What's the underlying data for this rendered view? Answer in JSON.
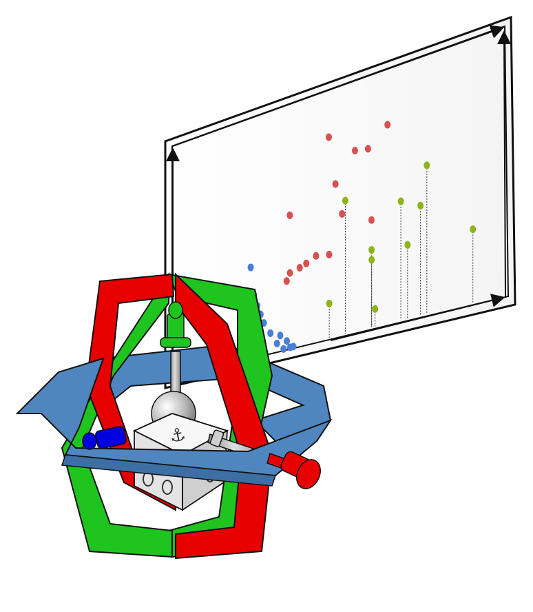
{
  "colors": {
    "red": "#e60000",
    "green": "#1fc41f",
    "blue": "#4f86c0",
    "blue_marker": "#0000e0",
    "red_points": "#d85050",
    "blue_points": "#4a7fd6",
    "green_points": "#8db41a",
    "cube": "#f2f2f2",
    "rod": "#b0b0b0"
  },
  "icons": [
    "anchor-icon",
    "axis-arrow-icon"
  ],
  "cube_symbol": "⚓",
  "scatter": {
    "red": [
      [
        0.47,
        0.82
      ],
      [
        0.65,
        0.79
      ],
      [
        0.55,
        0.73
      ],
      [
        0.59,
        0.72
      ],
      [
        0.49,
        0.62
      ],
      [
        0.35,
        0.55
      ],
      [
        0.51,
        0.49
      ],
      [
        0.6,
        0.43
      ],
      [
        0.43,
        0.35
      ],
      [
        0.47,
        0.34
      ],
      [
        0.35,
        0.31
      ],
      [
        0.38,
        0.32
      ],
      [
        0.4,
        0.33
      ],
      [
        0.34,
        0.28
      ]
    ],
    "blue": [
      [
        0.23,
        0.38
      ],
      [
        0.21,
        0.27
      ],
      [
        0.24,
        0.26
      ],
      [
        0.25,
        0.21
      ],
      [
        0.26,
        0.17
      ],
      [
        0.27,
        0.13
      ],
      [
        0.29,
        0.08
      ],
      [
        0.31,
        0.03
      ],
      [
        0.32,
        0.06
      ],
      [
        0.34,
        0.03
      ],
      [
        0.35,
        0.0
      ],
      [
        0.33,
        0.0
      ],
      [
        0.36,
        0.0
      ]
    ],
    "green": [
      [
        0.52,
        0.54
      ],
      [
        0.77,
        0.58
      ],
      [
        0.69,
        0.47
      ],
      [
        0.75,
        0.43
      ],
      [
        0.6,
        0.31
      ],
      [
        0.6,
        0.27
      ],
      [
        0.71,
        0.29
      ],
      [
        0.91,
        0.28
      ],
      [
        0.47,
        0.14
      ],
      [
        0.61,
        0.07
      ]
    ]
  }
}
